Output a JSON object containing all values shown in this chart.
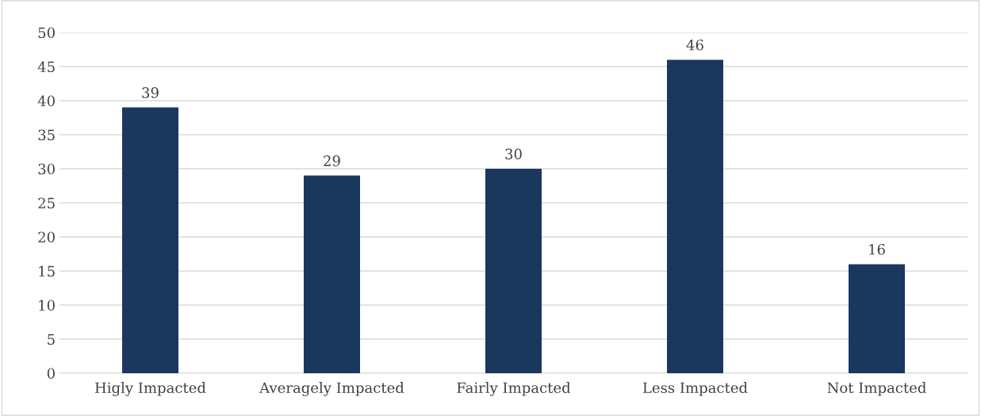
{
  "chart_data": {
    "type": "bar",
    "categories": [
      "Higly Impacted",
      "Averagely Impacted",
      "Fairly Impacted",
      "Less Impacted",
      "Not Impacted"
    ],
    "values": [
      39,
      29,
      30,
      46,
      16
    ],
    "color": "#1a375e",
    "ylim": [
      0,
      50
    ],
    "yticks": [
      0,
      5,
      10,
      15,
      20,
      25,
      30,
      35,
      40,
      45,
      50
    ],
    "grid": "y",
    "data_labels": true
  }
}
